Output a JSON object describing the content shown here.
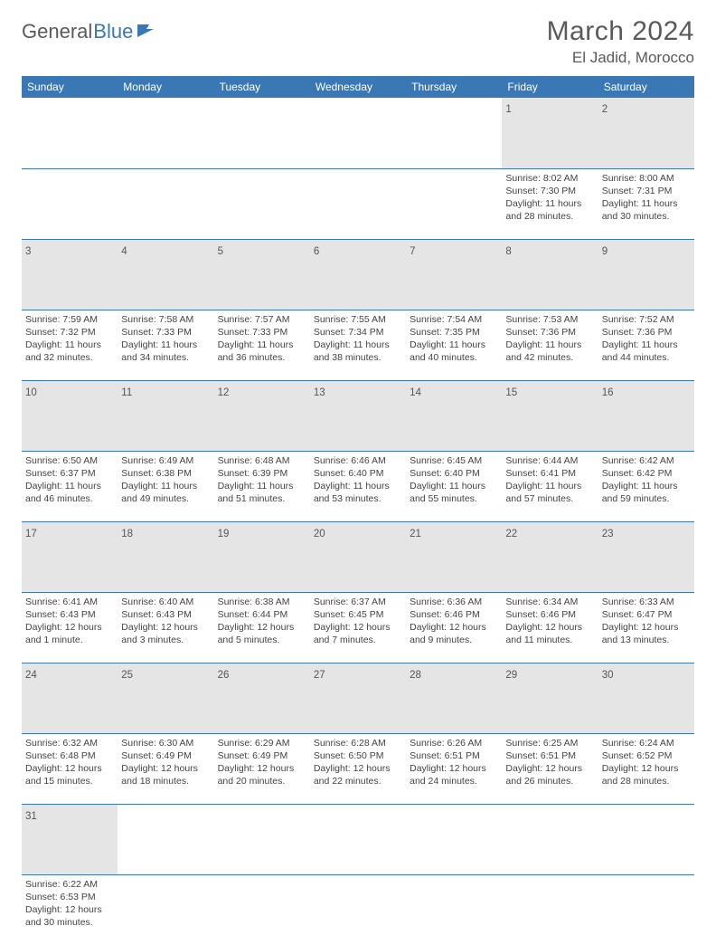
{
  "brand": {
    "general": "General",
    "blue": "Blue"
  },
  "title": "March 2024",
  "location": "El Jadid, Morocco",
  "colors": {
    "header_bg": "#3a78b5",
    "header_text": "#ffffff",
    "daynum_bg": "#e5e5e5",
    "border": "#3a78b5",
    "page_bg": "#ffffff",
    "text": "#444444",
    "title_color": "#5a5a5a"
  },
  "weekdays": [
    "Sunday",
    "Monday",
    "Tuesday",
    "Wednesday",
    "Thursday",
    "Friday",
    "Saturday"
  ],
  "weeks": [
    [
      null,
      null,
      null,
      null,
      null,
      {
        "n": "1",
        "sr": "8:02 AM",
        "ss": "7:30 PM",
        "dl": "11 hours and 28 minutes."
      },
      {
        "n": "2",
        "sr": "8:00 AM",
        "ss": "7:31 PM",
        "dl": "11 hours and 30 minutes."
      }
    ],
    [
      {
        "n": "3",
        "sr": "7:59 AM",
        "ss": "7:32 PM",
        "dl": "11 hours and 32 minutes."
      },
      {
        "n": "4",
        "sr": "7:58 AM",
        "ss": "7:33 PM",
        "dl": "11 hours and 34 minutes."
      },
      {
        "n": "5",
        "sr": "7:57 AM",
        "ss": "7:33 PM",
        "dl": "11 hours and 36 minutes."
      },
      {
        "n": "6",
        "sr": "7:55 AM",
        "ss": "7:34 PM",
        "dl": "11 hours and 38 minutes."
      },
      {
        "n": "7",
        "sr": "7:54 AM",
        "ss": "7:35 PM",
        "dl": "11 hours and 40 minutes."
      },
      {
        "n": "8",
        "sr": "7:53 AM",
        "ss": "7:36 PM",
        "dl": "11 hours and 42 minutes."
      },
      {
        "n": "9",
        "sr": "7:52 AM",
        "ss": "7:36 PM",
        "dl": "11 hours and 44 minutes."
      }
    ],
    [
      {
        "n": "10",
        "sr": "6:50 AM",
        "ss": "6:37 PM",
        "dl": "11 hours and 46 minutes."
      },
      {
        "n": "11",
        "sr": "6:49 AM",
        "ss": "6:38 PM",
        "dl": "11 hours and 49 minutes."
      },
      {
        "n": "12",
        "sr": "6:48 AM",
        "ss": "6:39 PM",
        "dl": "11 hours and 51 minutes."
      },
      {
        "n": "13",
        "sr": "6:46 AM",
        "ss": "6:40 PM",
        "dl": "11 hours and 53 minutes."
      },
      {
        "n": "14",
        "sr": "6:45 AM",
        "ss": "6:40 PM",
        "dl": "11 hours and 55 minutes."
      },
      {
        "n": "15",
        "sr": "6:44 AM",
        "ss": "6:41 PM",
        "dl": "11 hours and 57 minutes."
      },
      {
        "n": "16",
        "sr": "6:42 AM",
        "ss": "6:42 PM",
        "dl": "11 hours and 59 minutes."
      }
    ],
    [
      {
        "n": "17",
        "sr": "6:41 AM",
        "ss": "6:43 PM",
        "dl": "12 hours and 1 minute."
      },
      {
        "n": "18",
        "sr": "6:40 AM",
        "ss": "6:43 PM",
        "dl": "12 hours and 3 minutes."
      },
      {
        "n": "19",
        "sr": "6:38 AM",
        "ss": "6:44 PM",
        "dl": "12 hours and 5 minutes."
      },
      {
        "n": "20",
        "sr": "6:37 AM",
        "ss": "6:45 PM",
        "dl": "12 hours and 7 minutes."
      },
      {
        "n": "21",
        "sr": "6:36 AM",
        "ss": "6:46 PM",
        "dl": "12 hours and 9 minutes."
      },
      {
        "n": "22",
        "sr": "6:34 AM",
        "ss": "6:46 PM",
        "dl": "12 hours and 11 minutes."
      },
      {
        "n": "23",
        "sr": "6:33 AM",
        "ss": "6:47 PM",
        "dl": "12 hours and 13 minutes."
      }
    ],
    [
      {
        "n": "24",
        "sr": "6:32 AM",
        "ss": "6:48 PM",
        "dl": "12 hours and 15 minutes."
      },
      {
        "n": "25",
        "sr": "6:30 AM",
        "ss": "6:49 PM",
        "dl": "12 hours and 18 minutes."
      },
      {
        "n": "26",
        "sr": "6:29 AM",
        "ss": "6:49 PM",
        "dl": "12 hours and 20 minutes."
      },
      {
        "n": "27",
        "sr": "6:28 AM",
        "ss": "6:50 PM",
        "dl": "12 hours and 22 minutes."
      },
      {
        "n": "28",
        "sr": "6:26 AM",
        "ss": "6:51 PM",
        "dl": "12 hours and 24 minutes."
      },
      {
        "n": "29",
        "sr": "6:25 AM",
        "ss": "6:51 PM",
        "dl": "12 hours and 26 minutes."
      },
      {
        "n": "30",
        "sr": "6:24 AM",
        "ss": "6:52 PM",
        "dl": "12 hours and 28 minutes."
      }
    ],
    [
      {
        "n": "31",
        "sr": "6:22 AM",
        "ss": "6:53 PM",
        "dl": "12 hours and 30 minutes."
      },
      null,
      null,
      null,
      null,
      null,
      null
    ]
  ],
  "labels": {
    "sunrise": "Sunrise: ",
    "sunset": "Sunset: ",
    "daylight": "Daylight: "
  }
}
